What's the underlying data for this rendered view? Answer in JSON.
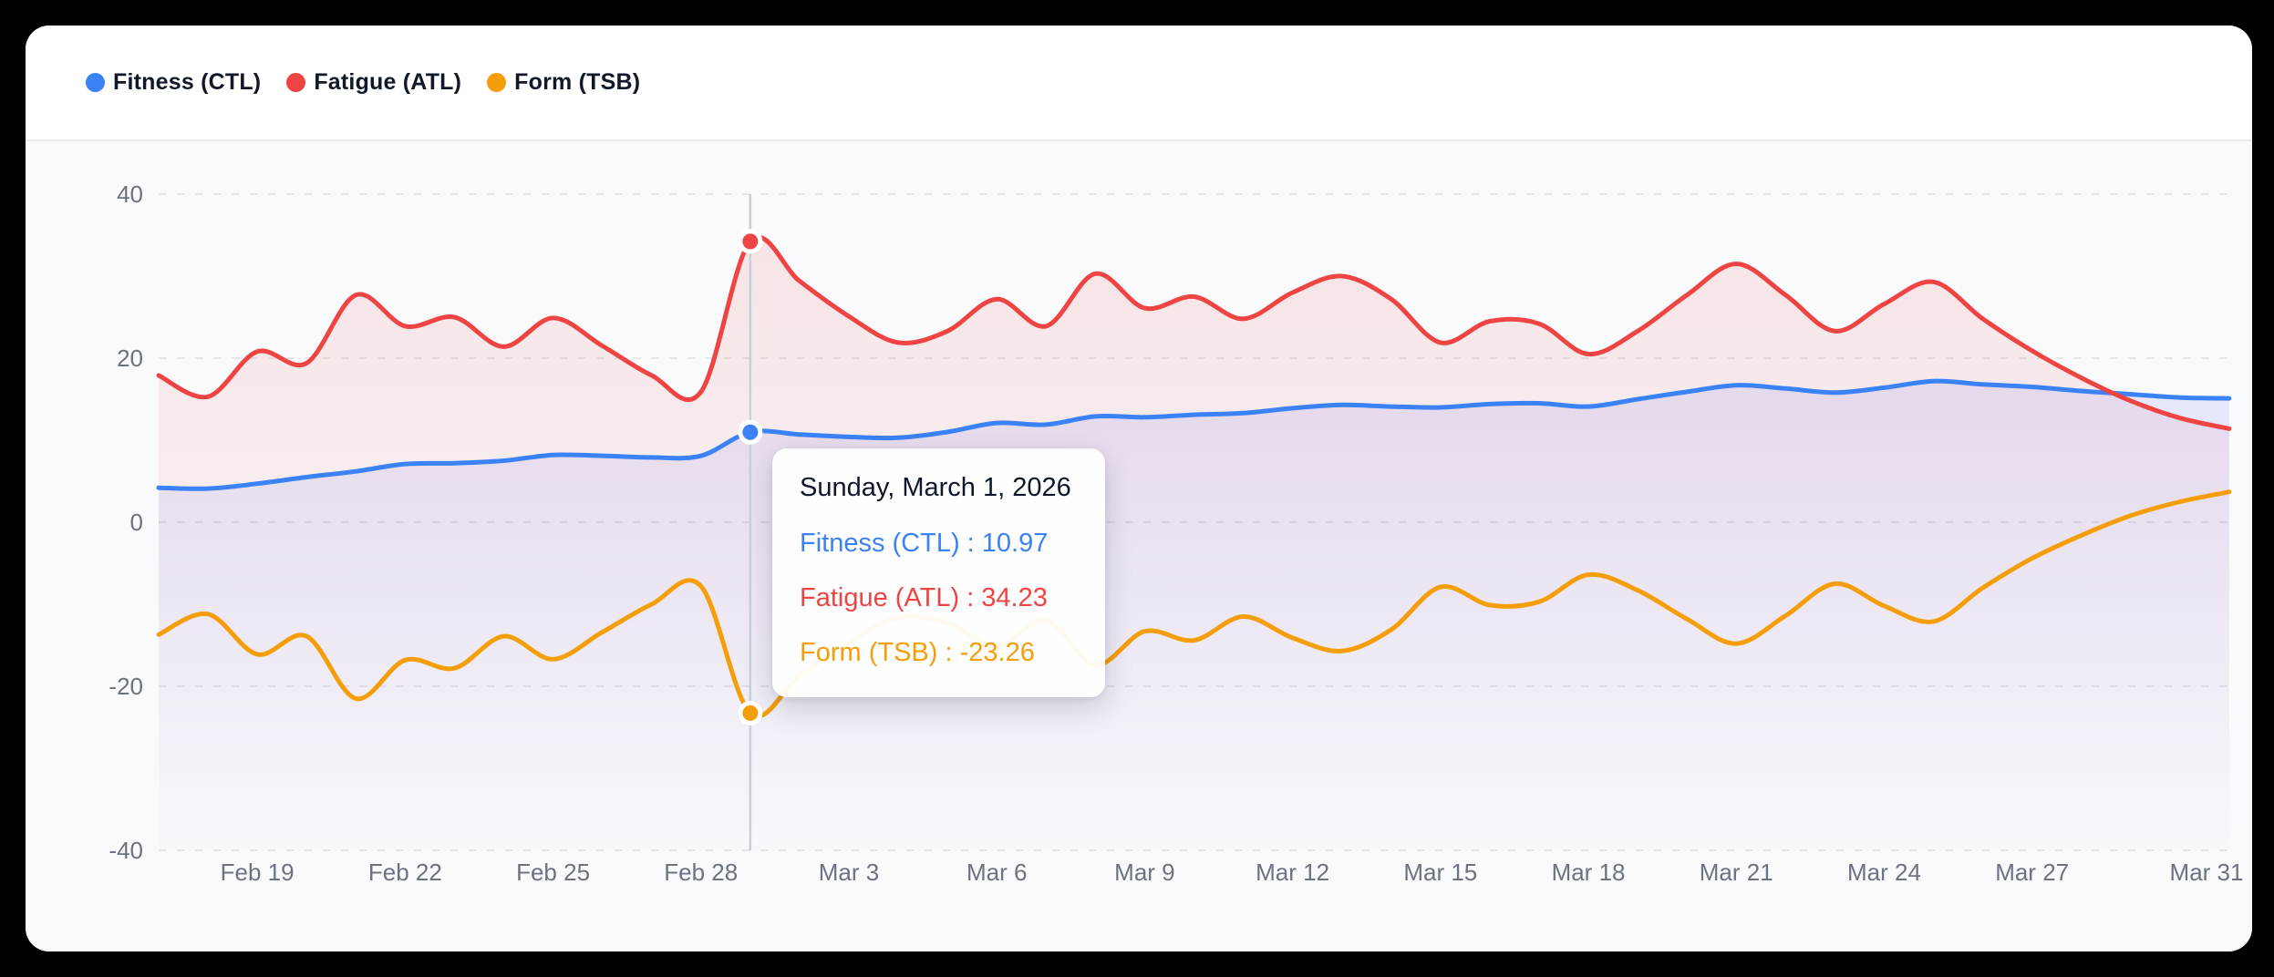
{
  "legend": {
    "items": [
      {
        "label": "Fitness (CTL)",
        "color": "#3b82f6"
      },
      {
        "label": "Fatigue (ATL)",
        "color": "#ef4444"
      },
      {
        "label": "Form (TSB)",
        "color": "#f59e0b"
      }
    ]
  },
  "tooltip": {
    "title": "Sunday, March 1, 2026",
    "rows": [
      {
        "label": "Fitness (CTL)",
        "value": "10.97",
        "display": "Fitness (CTL) : 10.97",
        "color": "#3b82f6"
      },
      {
        "label": "Fatigue (ATL)",
        "value": "34.23",
        "display": "Fatigue (ATL) : 34.23",
        "color": "#ef4444"
      },
      {
        "label": "Form (TSB)",
        "value": "-23.26",
        "display": "Form (TSB) : -23.26",
        "color": "#f59e0b"
      }
    ]
  },
  "chart_data": {
    "type": "line",
    "title": "",
    "xlabel": "",
    "ylabel": "",
    "start_date": "Feb 17",
    "end_date": "Mar 31",
    "days_total": 43,
    "y_ticks": [
      40,
      20,
      0,
      -20,
      -40
    ],
    "ylim": [
      -40,
      40
    ],
    "grid": "horizontal-dashed",
    "legend_position": "top-left",
    "x_tick_labels": [
      {
        "label": "Feb 19",
        "day": 2
      },
      {
        "label": "Feb 22",
        "day": 5
      },
      {
        "label": "Feb 25",
        "day": 8
      },
      {
        "label": "Feb 28",
        "day": 11
      },
      {
        "label": "Mar 3",
        "day": 14
      },
      {
        "label": "Mar 6",
        "day": 17
      },
      {
        "label": "Mar 9",
        "day": 20
      },
      {
        "label": "Mar 12",
        "day": 23
      },
      {
        "label": "Mar 15",
        "day": 26
      },
      {
        "label": "Mar 18",
        "day": 29
      },
      {
        "label": "Mar 21",
        "day": 32
      },
      {
        "label": "Mar 24",
        "day": 35
      },
      {
        "label": "Mar 27",
        "day": 38
      },
      {
        "label": "Mar 31",
        "day": 42
      }
    ],
    "series": [
      {
        "name": "Fitness (CTL)",
        "color": "#3b82f6",
        "fill": "indigo-fade",
        "values": [
          4.2,
          4.1,
          4.7,
          5.5,
          6.2,
          7.1,
          7.2,
          7.5,
          8.2,
          8.1,
          7.9,
          8.1,
          10.97,
          10.7,
          10.4,
          10.3,
          11.0,
          12.1,
          11.9,
          12.9,
          12.8,
          13.1,
          13.3,
          13.9,
          14.3,
          14.1,
          14.0,
          14.4,
          14.5,
          14.1,
          15.0,
          15.9,
          16.7,
          16.3,
          15.8,
          16.4,
          17.2,
          16.8,
          16.5,
          16.0,
          15.6,
          15.2,
          15.1
        ]
      },
      {
        "name": "Fatigue (ATL)",
        "color": "#ef4444",
        "fill": "red-fade",
        "values": [
          17.9,
          15.3,
          20.8,
          19.4,
          27.7,
          23.9,
          25.0,
          21.4,
          24.9,
          21.5,
          17.9,
          15.9,
          34.23,
          29.4,
          25.1,
          21.9,
          23.3,
          27.2,
          23.9,
          30.3,
          26.1,
          27.5,
          24.8,
          28.0,
          30.0,
          27.2,
          21.9,
          24.5,
          24.2,
          20.5,
          23.3,
          27.7,
          31.5,
          27.7,
          23.3,
          26.6,
          29.3,
          24.8,
          20.9,
          17.6,
          14.8,
          12.7,
          11.4
        ]
      },
      {
        "name": "Form (TSB)",
        "color": "#f59e0b",
        "fill": null,
        "values": [
          -13.7,
          -11.2,
          -16.1,
          -13.9,
          -21.5,
          -16.8,
          -17.8,
          -13.9,
          -16.7,
          -13.4,
          -10.0,
          -7.8,
          -23.26,
          -18.7,
          -14.7,
          -11.6,
          -12.3,
          -15.1,
          -12.0,
          -17.4,
          -13.3,
          -14.4,
          -11.5,
          -14.1,
          -15.7,
          -13.1,
          -7.9,
          -10.1,
          -9.7,
          -6.4,
          -8.3,
          -11.8,
          -14.8,
          -11.4,
          -7.5,
          -10.2,
          -12.1,
          -8.0,
          -4.4,
          -1.6,
          0.8,
          2.5,
          3.7
        ]
      }
    ],
    "highlight": {
      "day_index": 12,
      "date": "Sunday, March 1, 2026",
      "crosshair": true,
      "values": {
        "ctl": 10.97,
        "atl": 34.23,
        "tsb": -23.26
      }
    }
  }
}
